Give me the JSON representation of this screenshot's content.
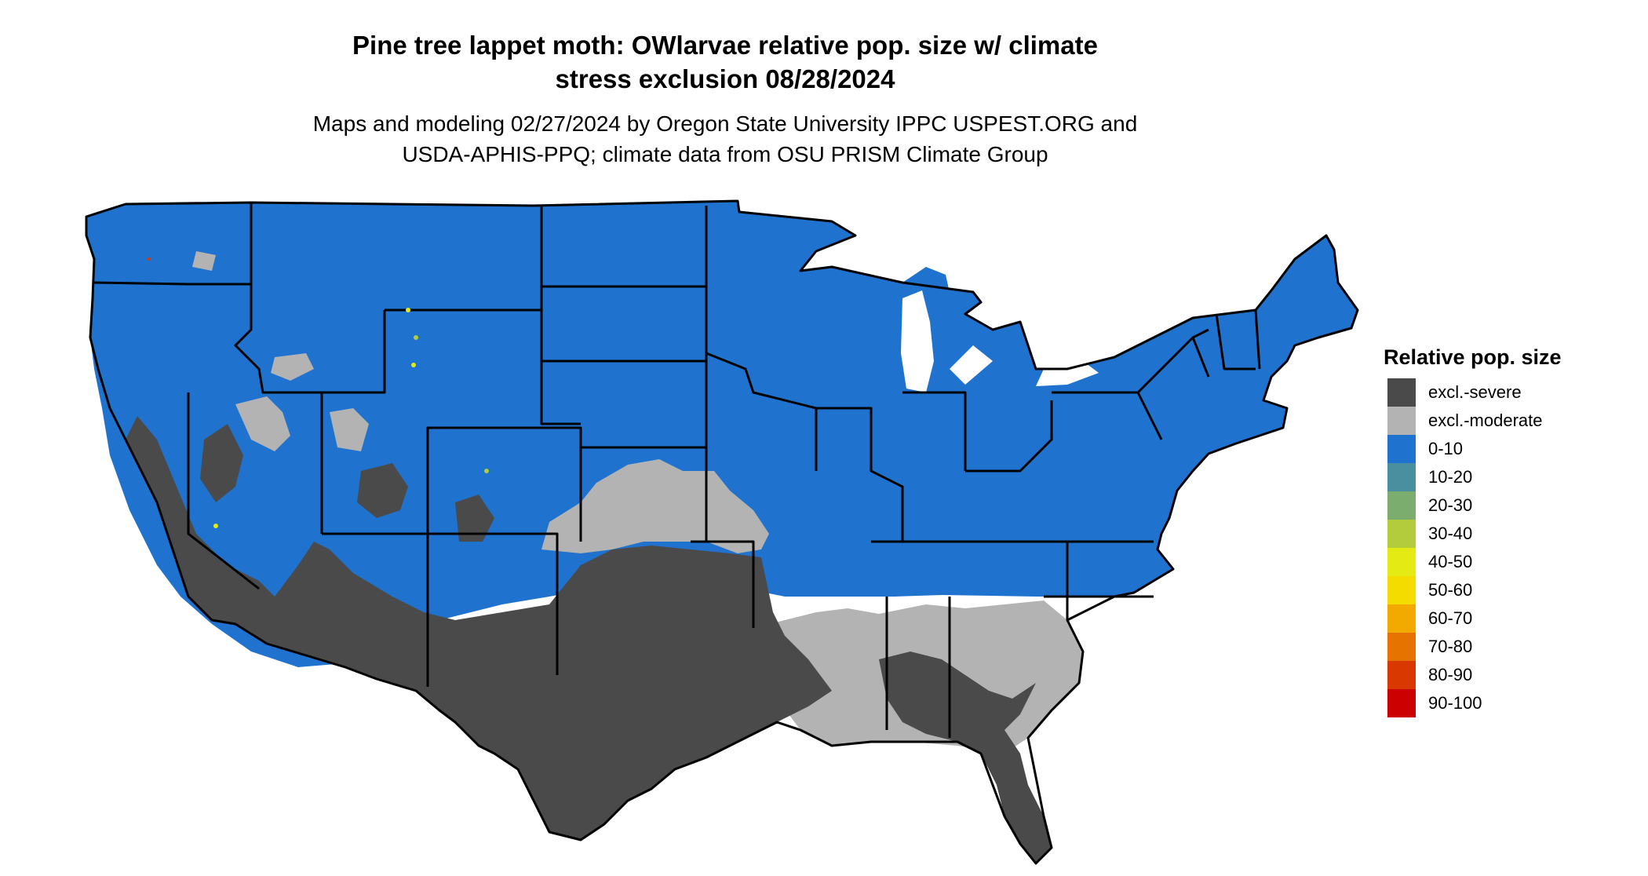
{
  "title_lines": [
    "Pine tree lappet moth: OWlarvae relative pop. size w/ climate",
    "stress exclusion 08/28/2024"
  ],
  "subtitle_lines": [
    "Maps and modeling 02/27/2024 by Oregon State University IPPC USPEST.ORG and",
    "USDA-APHIS-PPQ; climate data from OSU PRISM Climate Group"
  ],
  "legend": {
    "title": "Relative pop. size",
    "items": [
      {
        "label": "excl.-severe",
        "color": "#4a4a4a"
      },
      {
        "label": "excl.-moderate",
        "color": "#b3b3b3"
      },
      {
        "label": "0-10",
        "color": "#1f73cf"
      },
      {
        "label": "10-20",
        "color": "#4a8fa0"
      },
      {
        "label": "20-30",
        "color": "#7aad6e"
      },
      {
        "label": "30-40",
        "color": "#b3cc3c"
      },
      {
        "label": "40-50",
        "color": "#e3ea14"
      },
      {
        "label": "50-60",
        "color": "#f5dc00"
      },
      {
        "label": "60-70",
        "color": "#f2a900"
      },
      {
        "label": "70-80",
        "color": "#e67300"
      },
      {
        "label": "80-90",
        "color": "#d93800"
      },
      {
        "label": "90-100",
        "color": "#cc0000"
      }
    ]
  },
  "map": {
    "region": "Contiguous United States",
    "fill_colors": {
      "low": "#1f73cf",
      "severe": "#4a4a4a",
      "moderate": "#b3b3b3",
      "border": "#000000"
    }
  }
}
